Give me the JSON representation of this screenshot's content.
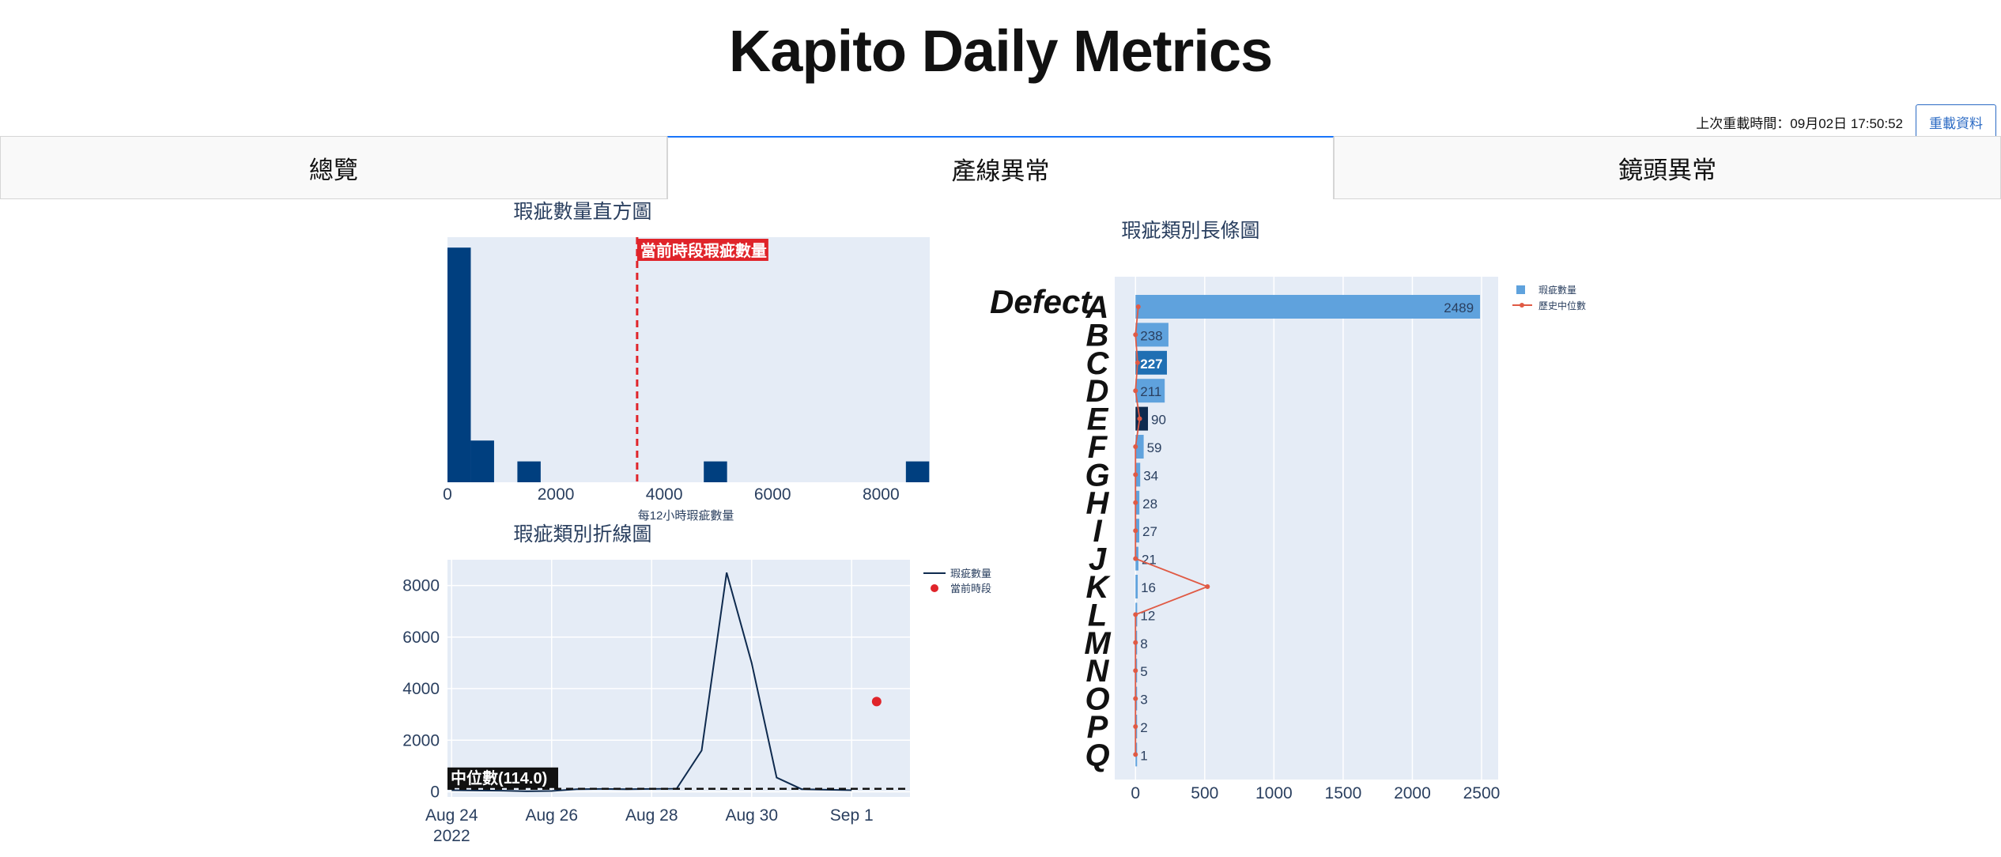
{
  "app": {
    "title": "Kapito Daily Metrics"
  },
  "reload": {
    "time_text": "上次重載時間：09月02日 17:50:52",
    "button_label": "重載資料"
  },
  "tabs": [
    {
      "label": "總覽",
      "active": false
    },
    {
      "label": "產線異常",
      "active": true
    },
    {
      "label": "鏡頭異常",
      "active": false
    }
  ],
  "colors": {
    "dark_blue": "#003f7f",
    "bar_blue": "#5fa2dd",
    "plot_bg": "#e5ecf6",
    "red": "#e0242a",
    "median_line": "#e05a44"
  },
  "chart_data": [
    {
      "type": "bar",
      "title": "瑕疵數量直方圖",
      "xlabel": "每12小時瑕疵數量",
      "ylabel": "",
      "xlim": [
        0,
        8900
      ],
      "xticks": [
        "0",
        "2000",
        "4000",
        "6000",
        "8000"
      ],
      "bins": [
        {
          "x0": 0,
          "x1": 430,
          "value": 9
        },
        {
          "x0": 430,
          "x1": 860,
          "value": 1.6
        },
        {
          "x0": 1290,
          "x1": 1720,
          "value": 0.8
        },
        {
          "x0": 4730,
          "x1": 5160,
          "value": 0.8
        },
        {
          "x0": 8460,
          "x1": 8890,
          "value": 0.8
        }
      ],
      "annotation": {
        "x": 3500,
        "text": "當前時段瑕疵數量"
      }
    },
    {
      "type": "line",
      "title": "瑕疵類別折線圖",
      "xlabel": "",
      "ylabel": "",
      "xticks": [
        "Aug 24\n2022",
        "Aug 26",
        "Aug 28",
        "Aug 30",
        "Sep 1"
      ],
      "yticks": [
        "0",
        "2000",
        "4000",
        "6000",
        "8000"
      ],
      "ylim": [
        -200,
        9000
      ],
      "series": [
        {
          "name": "瑕疵數量",
          "x": [
            "2022-08-24",
            "2022-08-24 12:00",
            "2022-08-25",
            "2022-08-25 12:00",
            "2022-08-26",
            "2022-08-26 12:00",
            "2022-08-27",
            "2022-08-27 12:00",
            "2022-08-28",
            "2022-08-28 12:00",
            "2022-08-29",
            "2022-08-29 12:00",
            "2022-08-30",
            "2022-08-30 12:00",
            "2022-08-31",
            "2022-08-31 12:00",
            "2022-09-01"
          ],
          "values": [
            60,
            50,
            40,
            20,
            30,
            100,
            110,
            100,
            110,
            120,
            1600,
            8500,
            5000,
            550,
            100,
            80,
            60
          ]
        },
        {
          "name": "當前時段",
          "x": [
            "2022-09-01 12:00"
          ],
          "values": [
            3500
          ]
        }
      ],
      "median": {
        "value": 114.0,
        "label": "中位數(114.0)"
      }
    },
    {
      "type": "bar",
      "orientation": "horizontal",
      "title": "瑕疵類別長條圖",
      "categories_label": "Defect A B C D E F G H I J K L M N O P Q",
      "categories": [
        "A",
        "B",
        "C",
        "D",
        "E",
        "F",
        "G",
        "H",
        "I",
        "J",
        "K",
        "L",
        "M",
        "N",
        "O",
        "P",
        "Q"
      ],
      "xticks": [
        "0",
        "500",
        "1000",
        "1500",
        "2000",
        "2500"
      ],
      "xlim": [
        -150,
        2620
      ],
      "series": [
        {
          "name": "瑕疵數量",
          "values": [
            2489,
            238,
            227,
            211,
            90,
            59,
            34,
            28,
            27,
            21,
            16,
            12,
            8,
            5,
            3,
            2,
            1
          ],
          "labels": [
            "2489",
            "238",
            "227",
            "211",
            "90",
            "59",
            "34",
            "28",
            "27",
            "21",
            "16",
            "12",
            "8",
            "5",
            "3",
            "2",
            "1"
          ]
        },
        {
          "name": "歷史中位數",
          "values": [
            20,
            0,
            15,
            0,
            30,
            0,
            0,
            0,
            0,
            0,
            520,
            0,
            0,
            0,
            0,
            0,
            0
          ]
        }
      ],
      "bar_colors": [
        "#5fa2dd",
        "#5fa2dd",
        "#1f6fb3",
        "#5fa2dd",
        "#0e2a4e",
        "#5fa2dd",
        "#5fa2dd",
        "#5fa2dd",
        "#5fa2dd",
        "#5fa2dd",
        "#5fa2dd",
        "#5fa2dd",
        "#5fa2dd",
        "#5fa2dd",
        "#5fa2dd",
        "#5fa2dd",
        "#5fa2dd"
      ]
    }
  ]
}
